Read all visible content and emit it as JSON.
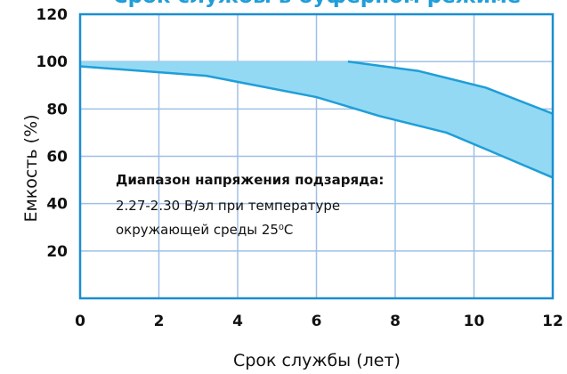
{
  "chart_data": {
    "type": "area",
    "title": "Срок службы в буферном режиме",
    "xlabel": "Срок службы (лет)",
    "ylabel": "Емкость (%)",
    "xlim": [
      0,
      12
    ],
    "ylim": [
      0,
      120
    ],
    "x_ticks": [
      "0",
      "2",
      "4",
      "6",
      "8",
      "10",
      "12"
    ],
    "y_ticks": [
      "120",
      "100",
      "80",
      "60",
      "40",
      "20"
    ],
    "grid": true,
    "series": [
      {
        "x": [
          0,
          3.2,
          6.8,
          8.6,
          10.3,
          12
        ],
        "values": [
          100,
          100,
          100,
          96,
          89,
          78
        ]
      },
      {
        "x": [
          0,
          3.2,
          6.0,
          7.6,
          9.3,
          10.3,
          12
        ],
        "values": [
          98,
          94,
          85,
          77,
          70,
          63,
          51
        ]
      }
    ],
    "annotation": {
      "heading": "Диапазон напряжения подзаряда:",
      "lines": [
        "2.27-2.30 В/эл при температуре",
        "окружающей среды 25⁰С"
      ]
    },
    "colors": {
      "fill": "#93d9f3",
      "line": "#1f9ed8",
      "grid": "#9fbfe6",
      "frame": "#1a8ed0",
      "title": "#1f9ed8"
    }
  }
}
